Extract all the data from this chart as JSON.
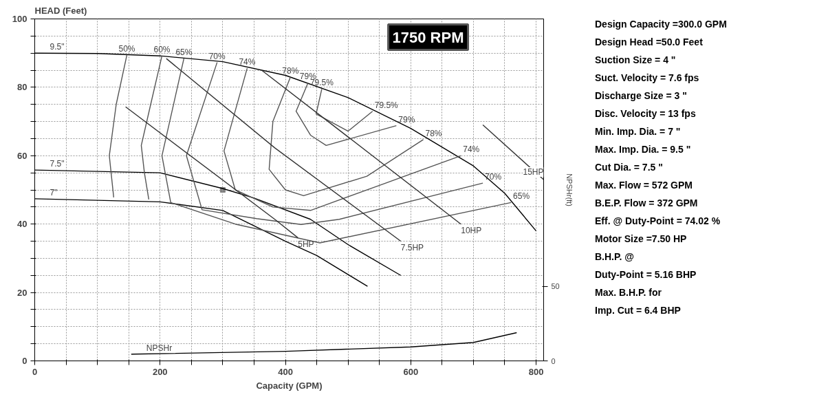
{
  "chart_data": {
    "type": "line",
    "subtitle": "1750 RPM",
    "xlabel": "Capacity (GPM)",
    "ylabel": "HEAD (Feet)",
    "y2label": "NPSHr(ft)",
    "xlim": [
      0,
      812
    ],
    "ylim": [
      0,
      100
    ],
    "y2lim": [
      0,
      230
    ],
    "grid": true,
    "xticks": [
      0,
      {
        "value": 50,
        "label": null
      },
      {
        "value": 100,
        "label": null
      },
      {
        "value": 150,
        "label": null
      },
      200,
      {
        "value": 250,
        "label": null
      },
      {
        "value": 300,
        "label": null
      },
      {
        "value": 350,
        "label": null
      },
      400,
      {
        "value": 450,
        "label": null
      },
      {
        "value": 500,
        "label": null
      },
      {
        "value": 550,
        "label": null
      },
      600,
      {
        "value": 650,
        "label": null
      },
      {
        "value": 700,
        "label": null
      },
      {
        "value": 750,
        "label": null
      },
      800
    ],
    "yticks": [
      0,
      {
        "value": 5,
        "label": null
      },
      {
        "value": 10,
        "label": null
      },
      {
        "value": 15,
        "label": null
      },
      20,
      {
        "value": 25,
        "label": null
      },
      {
        "value": 30,
        "label": null
      },
      {
        "value": 35,
        "label": null
      },
      40,
      {
        "value": 45,
        "label": null
      },
      {
        "value": 50,
        "label": null
      },
      {
        "value": 55,
        "label": null
      },
      60,
      {
        "value": 65,
        "label": null
      },
      {
        "value": 70,
        "label": null
      },
      {
        "value": 75,
        "label": null
      },
      80,
      {
        "value": 85,
        "label": null
      },
      {
        "value": 90,
        "label": null
      },
      {
        "value": 95,
        "label": null
      },
      100
    ],
    "y2ticks": [
      0,
      50
    ],
    "series": [
      {
        "name": "9.5\"",
        "color": "#000000",
        "x": [
          0,
          100,
          200,
          300,
          400,
          500,
          600,
          700,
          750,
          800
        ],
        "values": [
          90,
          89.9,
          89.2,
          87.5,
          83.5,
          77,
          68,
          57,
          49,
          38
        ]
      },
      {
        "name": "7.5\"",
        "color": "#000000",
        "x": [
          0,
          200,
          300,
          350,
          440,
          500,
          584
        ],
        "values": [
          55.8,
          55,
          50.4,
          47.6,
          41.4,
          34,
          25
        ]
      },
      {
        "name": "7\"",
        "color": "#000000",
        "x": [
          0,
          200,
          300,
          400,
          450,
          531
        ],
        "values": [
          47.4,
          46.5,
          44,
          35,
          30.8,
          21.8
        ]
      },
      {
        "name": "50%",
        "color": "#555555",
        "x": [
          147,
          130,
          119,
          126
        ],
        "values": [
          89.4,
          75,
          60,
          47.8
        ]
      },
      {
        "name": "60%",
        "color": "#555555",
        "x": [
          203,
          185,
          170,
          175,
          182
        ],
        "values": [
          89.2,
          75,
          63,
          55,
          47.2
        ]
      },
      {
        "name": "65%",
        "color": "#555555",
        "x": [
          238,
          203,
          217,
          320,
          455,
          760
        ],
        "values": [
          88.4,
          60,
          46.3,
          40,
          34.5,
          46.3
        ]
      },
      {
        "name": "70%",
        "color": "#555555",
        "x": [
          291,
          242,
          267,
          354,
          425,
          486,
          715
        ],
        "values": [
          87.3,
          60,
          44.2,
          41.6,
          39.9,
          41.4,
          52
        ]
      },
      {
        "name": "74%",
        "color": "#555555",
        "x": [
          339,
          302,
          320,
          380,
          440,
          560,
          680
        ],
        "values": [
          85.6,
          61.4,
          50,
          45,
          44,
          52,
          60
        ]
      },
      {
        "name": "78%",
        "color": "#555555",
        "x": [
          408,
          380,
          374,
          400,
          429,
          530,
          620
        ],
        "values": [
          83,
          70,
          56,
          50,
          48.3,
          54,
          64.7
        ]
      },
      {
        "name": "79%",
        "color": "#555555",
        "x": [
          436,
          417,
          440,
          465,
          577
        ],
        "values": [
          81.3,
          73,
          66,
          63,
          68.8
        ]
      },
      {
        "name": "79.5%",
        "color": "#555555",
        "x": [
          458,
          449,
          500,
          539
        ],
        "values": [
          79.5,
          72.2,
          67.2,
          73
        ]
      },
      {
        "name": "5HP",
        "color": "#333333",
        "x": [
          420,
          383,
          145
        ],
        "values": [
          36,
          41.4,
          74.3
        ]
      },
      {
        "name": "7.5HP",
        "color": "#333333",
        "x": [
          584,
          383,
          210
        ],
        "values": [
          35,
          62.3,
          88.4
        ]
      },
      {
        "name": "10HP",
        "color": "#333333",
        "x": [
          680,
          560,
          362
        ],
        "values": [
          40,
          57,
          85
        ]
      },
      {
        "name": "15HP",
        "color": "#333333",
        "x": [
          812,
          715
        ],
        "values": [
          53,
          69
        ]
      },
      {
        "name": "NPSHr",
        "color": "#000000",
        "axis": "y2",
        "x": [
          154,
          400,
          600,
          700,
          769
        ],
        "values": [
          4.5,
          6.4,
          9.4,
          12.4,
          19
        ]
      },
      {
        "type": "scatter",
        "color": "#808080",
        "x": [
          300
        ],
        "values": [
          50
        ]
      }
    ],
    "annotations": [
      {
        "text": "79.5%",
        "x": 539,
        "y": 73
      },
      {
        "text": "79%",
        "x": 577,
        "y": 68.8
      },
      {
        "text": "78%",
        "x": 620,
        "y": 64.7
      },
      {
        "text": "74%",
        "x": 680,
        "y": 60
      },
      {
        "text": "70%",
        "x": 715,
        "y": 52
      },
      {
        "text": "65%",
        "x": 760,
        "y": 46.3
      },
      "Design Capacity =300.0 GPM",
      "Design Head =50.0 Feet",
      "Suction Size = 4 \"",
      "Suct. Velocity =  7.6 fps",
      "Discharge Size = 3 \"",
      "Disc. Velocity =  13 fps",
      "Min. Imp. Dia. = 7 \"",
      "Max. Imp. Dia. = 9.5 \"",
      "Cut Dia. = 7.5 \"",
      "Max. Flow = 572 GPM",
      "B.E.P. Flow  = 372 GPM",
      "Eff. @ Duty-Point = 74.02 %",
      "Motor Size =7.50 HP",
      "B.H.P. @",
      "Duty-Point = 5.16 BHP",
      "Max. B.H.P. for",
      "Imp. Cut = 6.4 BHP"
    ]
  }
}
